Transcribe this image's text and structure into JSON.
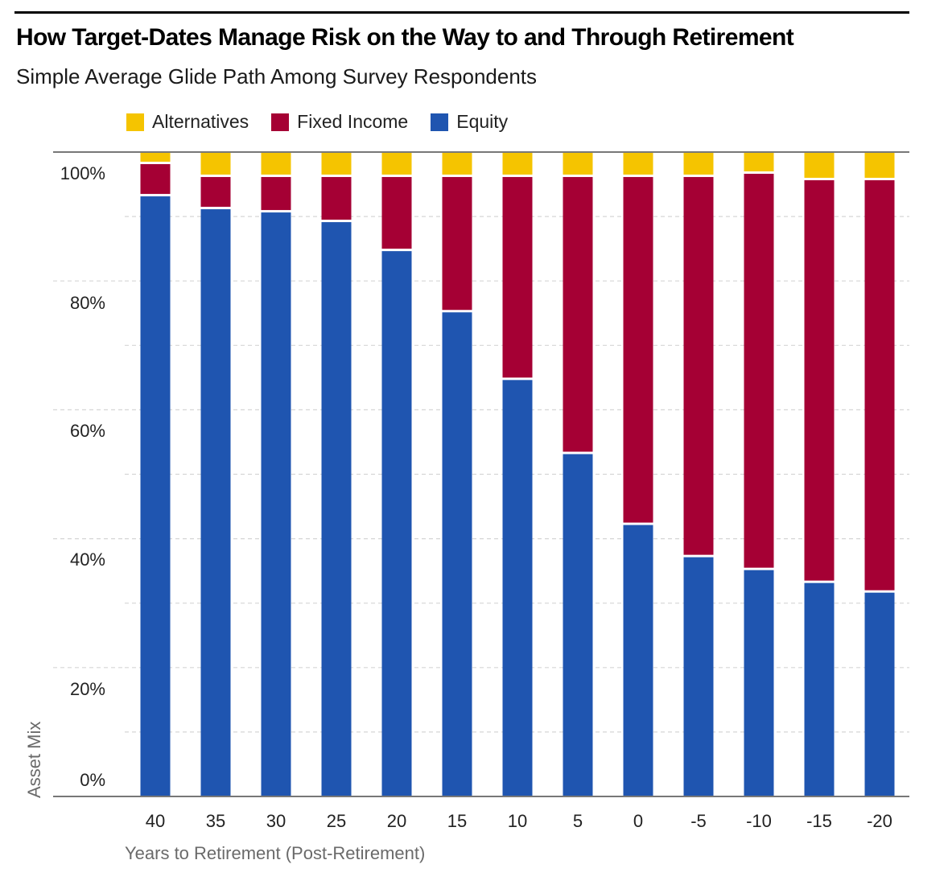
{
  "title": "How Target-Dates Manage Risk on the Way to and Through Retirement",
  "subtitle": "Simple Average Glide Path Among Survey Respondents",
  "colors": {
    "alternatives": "#F5C400",
    "fixed_income": "#A50034",
    "equity": "#1F55B0",
    "gridline": "#d6d6d6",
    "axis": "#777777"
  },
  "chart_data": {
    "type": "bar",
    "stacked": true,
    "xlabel": "Years to Retirement (Post-Retirement)",
    "ylabel": "Asset Mix",
    "ylim": [
      0,
      100
    ],
    "yticks": [
      "0%",
      "20%",
      "40%",
      "60%",
      "80%",
      "100%"
    ],
    "grid": true,
    "legend_position": "top-left",
    "categories": [
      "40",
      "35",
      "30",
      "25",
      "20",
      "15",
      "10",
      "5",
      "0",
      "-5",
      "-10",
      "-15",
      "-20"
    ],
    "series": [
      {
        "name": "Equity",
        "values": [
          93.5,
          91.5,
          91,
          89.5,
          85,
          75.5,
          65,
          53.5,
          42.5,
          37.5,
          35.5,
          33.5,
          32
        ]
      },
      {
        "name": "Fixed Income",
        "values": [
          5,
          5,
          5.5,
          7,
          11.5,
          21,
          31.5,
          43,
          54,
          59,
          61.5,
          62.5,
          64
        ]
      },
      {
        "name": "Alternatives",
        "values": [
          1.5,
          3.5,
          3.5,
          3.5,
          3.5,
          3.5,
          3.5,
          3.5,
          3.5,
          3.5,
          3,
          4,
          4
        ]
      }
    ]
  }
}
